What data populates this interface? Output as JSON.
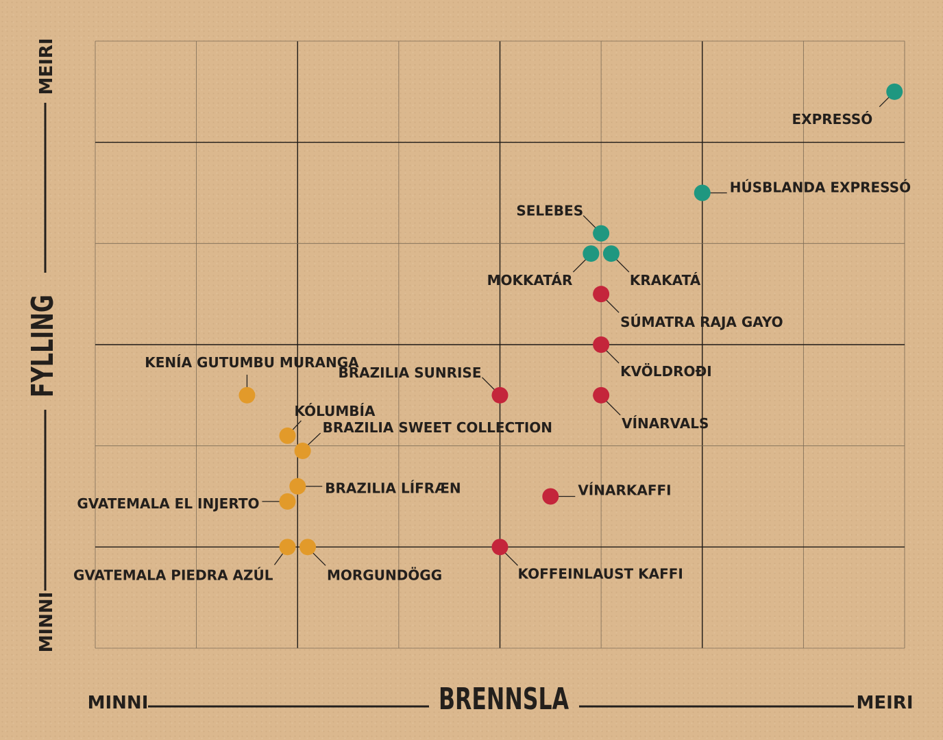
{
  "chart_data": {
    "type": "scatter",
    "xlabel": "BRENNSLA",
    "ylabel": "FYLLING",
    "x_axis": {
      "min_label": "MINNI",
      "max_label": "MEIRI"
    },
    "y_axis": {
      "min_label": "MINNI",
      "max_label": "MEIRI"
    },
    "xlim": [
      0,
      8
    ],
    "ylim": [
      0,
      6
    ],
    "grid": true,
    "colors": {
      "light": "#e29a2a",
      "medium": "#c4253b",
      "dark": "#1f9780"
    },
    "points": [
      {
        "name": "EXPRESSÓ",
        "x": 7.9,
        "y": 5.5,
        "group": "dark"
      },
      {
        "name": "HÚSBLANDA EXPRESSÓ",
        "x": 6.0,
        "y": 4.5,
        "group": "dark"
      },
      {
        "name": "SELEBES",
        "x": 5.0,
        "y": 4.1,
        "group": "dark"
      },
      {
        "name": "MOKKATÁR",
        "x": 4.9,
        "y": 3.9,
        "group": "dark"
      },
      {
        "name": "KRAKATÁ",
        "x": 5.1,
        "y": 3.9,
        "group": "dark"
      },
      {
        "name": "SÚMATRA RAJA GAYO",
        "x": 5.0,
        "y": 3.5,
        "group": "medium"
      },
      {
        "name": "KVÖLDROÐI",
        "x": 5.0,
        "y": 3.0,
        "group": "medium"
      },
      {
        "name": "VÍNARVALS",
        "x": 5.0,
        "y": 2.5,
        "group": "medium"
      },
      {
        "name": "BRAZILIA SUNRISE",
        "x": 4.0,
        "y": 2.5,
        "group": "medium"
      },
      {
        "name": "VÍNARKAFFI",
        "x": 4.5,
        "y": 1.5,
        "group": "medium"
      },
      {
        "name": "KOFFEINLAUST KAFFI",
        "x": 4.0,
        "y": 1.0,
        "group": "medium"
      },
      {
        "name": "KENÍA GUTUMBU MURANGA",
        "x": 1.5,
        "y": 2.5,
        "group": "light"
      },
      {
        "name": "KÓLUMBÍA",
        "x": 1.9,
        "y": 2.1,
        "group": "light"
      },
      {
        "name": "BRAZILIA SWEET COLLECTION",
        "x": 2.05,
        "y": 1.95,
        "group": "light"
      },
      {
        "name": "BRAZILIA LÍFRÆN",
        "x": 2.0,
        "y": 1.6,
        "group": "light"
      },
      {
        "name": "GVATEMALA EL INJERTO",
        "x": 1.9,
        "y": 1.45,
        "group": "light"
      },
      {
        "name": "GVATEMALA PIEDRA AZÚL",
        "x": 1.9,
        "y": 1.0,
        "group": "light"
      },
      {
        "name": "MORGUNDÖGG",
        "x": 2.1,
        "y": 1.0,
        "group": "light"
      }
    ]
  }
}
